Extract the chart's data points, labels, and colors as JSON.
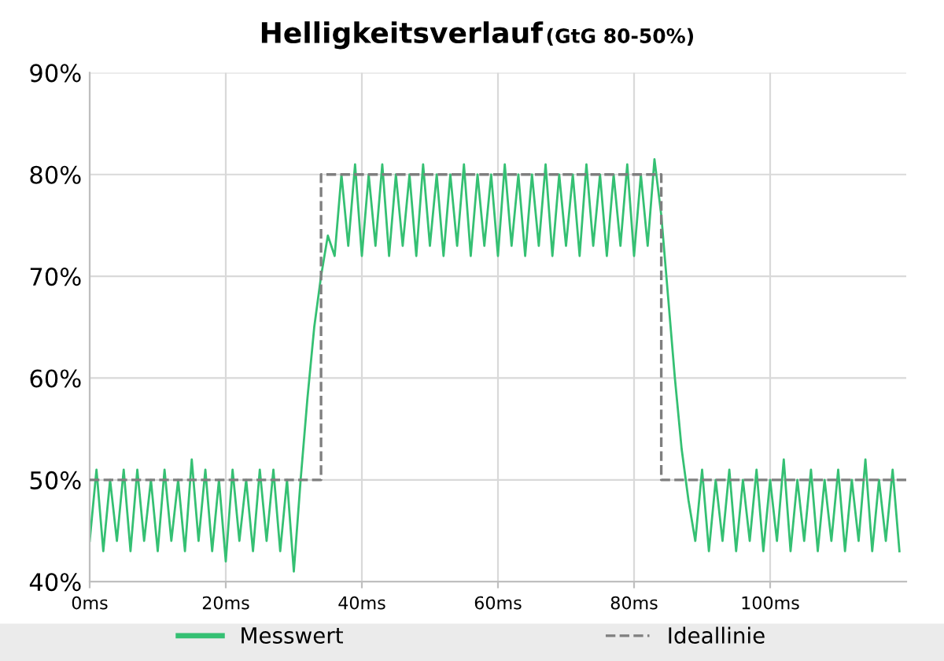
{
  "chart_data": {
    "type": "line",
    "title": "Helligkeitsverlauf",
    "subtitle": "(GtG 80-50%)",
    "x": [
      0,
      1,
      2,
      3,
      4,
      5,
      6,
      7,
      8,
      9,
      10,
      11,
      12,
      13,
      14,
      15,
      16,
      17,
      18,
      19,
      20,
      21,
      22,
      23,
      24,
      25,
      26,
      27,
      28,
      29,
      30,
      31,
      32,
      33,
      34,
      35,
      36,
      37,
      38,
      39,
      40,
      41,
      42,
      43,
      44,
      45,
      46,
      47,
      48,
      49,
      50,
      51,
      52,
      53,
      54,
      55,
      56,
      57,
      58,
      59,
      60,
      61,
      62,
      63,
      64,
      65,
      66,
      67,
      68,
      69,
      70,
      71,
      72,
      73,
      74,
      75,
      76,
      77,
      78,
      79,
      80,
      81,
      82,
      83,
      84,
      85,
      86,
      87,
      88,
      89,
      90,
      91,
      92,
      93,
      94,
      95,
      96,
      97,
      98,
      99,
      100,
      101,
      102,
      103,
      104,
      105,
      106,
      107,
      108,
      109,
      110,
      111,
      112,
      113,
      114,
      115,
      116,
      117,
      118,
      119
    ],
    "series": [
      {
        "name": "Messwert",
        "color": "#35c073",
        "line_style": "solid",
        "values": [
          44,
          51,
          43,
          50,
          44,
          51,
          43,
          51,
          44,
          50,
          43,
          51,
          44,
          50,
          43,
          52,
          44,
          51,
          43,
          50,
          42,
          51,
          44,
          50,
          43,
          51,
          44,
          51,
          43,
          50,
          41,
          50,
          58,
          65,
          70,
          74,
          72,
          80,
          73,
          81,
          72,
          80,
          73,
          81,
          72,
          80,
          73,
          80,
          72,
          81,
          73,
          80,
          72,
          80,
          73,
          81,
          72,
          80,
          73,
          80,
          72,
          81,
          73,
          80,
          72,
          80,
          73,
          81,
          72,
          80,
          73,
          80,
          72,
          81,
          73,
          80,
          72,
          80,
          73,
          81,
          72,
          80,
          73,
          81.5,
          76,
          68,
          60,
          53,
          48,
          44,
          51,
          43,
          50,
          44,
          51,
          43,
          50,
          44,
          51,
          43,
          50,
          44,
          52,
          43,
          50,
          44,
          51,
          43,
          50,
          44,
          51,
          43,
          50,
          44,
          52,
          43,
          50,
          44,
          51,
          43
        ]
      },
      {
        "name": "Ideallinie",
        "color": "#7f7f7f",
        "line_style": "dashed",
        "x": [
          0,
          34,
          34,
          84,
          84,
          120
        ],
        "values": [
          50,
          50,
          80,
          80,
          50,
          50
        ]
      }
    ],
    "xlim": [
      0,
      120
    ],
    "xticks": [
      {
        "value": 0,
        "label": "0ms"
      },
      {
        "value": 20,
        "label": "20ms"
      },
      {
        "value": 40,
        "label": "40ms"
      },
      {
        "value": 60,
        "label": "60ms"
      },
      {
        "value": 80,
        "label": "80ms"
      },
      {
        "value": 100,
        "label": "100ms"
      }
    ],
    "ylim": [
      40,
      90
    ],
    "yticks": [
      {
        "value": 40,
        "label": "40%"
      },
      {
        "value": 50,
        "label": "50%"
      },
      {
        "value": 60,
        "label": "60%"
      },
      {
        "value": 70,
        "label": "70%"
      },
      {
        "value": 80,
        "label": "80%"
      },
      {
        "value": 90,
        "label": "90%"
      }
    ],
    "grid": true,
    "legend": "bottom"
  }
}
